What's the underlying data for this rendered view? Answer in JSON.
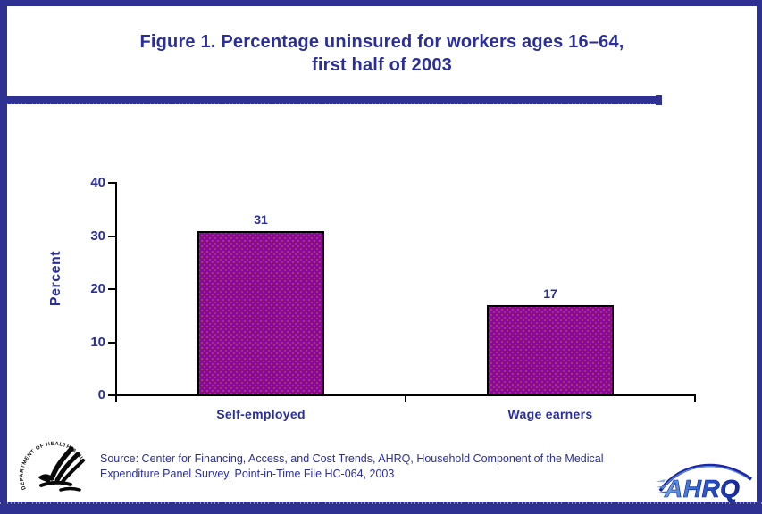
{
  "title": {
    "line1": "Figure 1. Percentage uninsured for workers ages 16–64,",
    "line2": "first half of 2003"
  },
  "chart_data": {
    "type": "bar",
    "title": "Figure 1. Percentage uninsured for workers ages 16–64, first half of 2003",
    "categories": [
      "Self-employed",
      "Wage earners"
    ],
    "values": [
      31,
      17
    ],
    "value_labels": [
      "31",
      "17"
    ],
    "xlabel": "",
    "ylabel": "Percent",
    "ylim": [
      0,
      40
    ],
    "yticks": [
      0,
      10,
      20,
      30,
      40
    ],
    "grid": false,
    "legend": "none",
    "bar_color": "#8A0999",
    "bar_border_color": "#000000"
  },
  "source": {
    "text": "Source: Center for Financing, Access, and Cost Trends, AHRQ, Household Component of the Medical Expenditure Panel Survey, Point-in-Time File HC-064, 2003"
  },
  "logos": {
    "hhs_ring_text": "DEPARTMENT OF HEALTH & HUMAN SERVICES·USA",
    "ahrq_text": "AHRQ"
  },
  "colors": {
    "frame_navy": "#2E3192",
    "text_navy": "#2A2E9C",
    "bar_purple": "#8A0999",
    "axis_black": "#000000",
    "background": "#FFFFFF",
    "ahrq_blue_light": "#6FA6EC",
    "ahrq_blue_dark": "#1B27A3"
  }
}
